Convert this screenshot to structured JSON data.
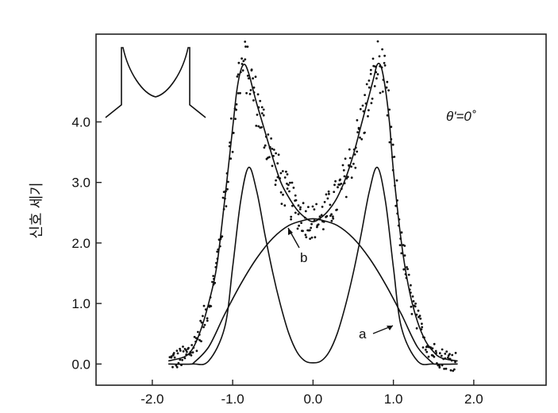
{
  "chart_data": {
    "type": "line",
    "title": "",
    "xlabel": "",
    "ylabel": "신호 세기",
    "xlim": [
      -2.7,
      2.9
    ],
    "ylim": [
      -0.35,
      5.45
    ],
    "x_ticks": [
      "-2.0",
      "-1.0",
      "0.0",
      "1.0",
      "2.0"
    ],
    "x_tick_values": [
      -2.0,
      -1.0,
      0.0,
      1.0,
      2.0
    ],
    "y_ticks": [
      "0.0",
      "1.0",
      "2.0",
      "3.0",
      "4.0"
    ],
    "y_tick_values": [
      0.0,
      1.0,
      2.0,
      3.0,
      4.0
    ],
    "grid": false,
    "annotation_theta": "θ'=0˚",
    "series": [
      {
        "label": "a",
        "style": "solid",
        "x": [
          -1.8,
          -1.5,
          -1.3,
          -1.1,
          -1.0,
          -0.9,
          -0.8,
          -0.7,
          -0.6,
          -0.5,
          -0.4,
          -0.3,
          -0.2,
          -0.1,
          0.0,
          0.1,
          0.2,
          0.3,
          0.4,
          0.5,
          0.6,
          0.7,
          0.8,
          0.9,
          1.0,
          1.1,
          1.3,
          1.5,
          1.8
        ],
        "y": [
          0.0,
          0.0,
          0.05,
          0.6,
          1.6,
          2.7,
          3.25,
          2.85,
          2.15,
          1.5,
          0.95,
          0.5,
          0.2,
          0.05,
          0.02,
          0.05,
          0.2,
          0.5,
          0.95,
          1.5,
          2.15,
          2.85,
          3.25,
          2.7,
          1.6,
          0.6,
          0.05,
          0.0,
          0.0
        ]
      },
      {
        "label": "",
        "style": "solid",
        "x": [
          -1.5,
          -1.3,
          -1.1,
          -0.9,
          -0.7,
          -0.5,
          -0.3,
          -0.1,
          0.0,
          0.1,
          0.3,
          0.5,
          0.7,
          0.9,
          1.1,
          1.3,
          1.5
        ],
        "y": [
          0.0,
          0.28,
          0.82,
          1.32,
          1.75,
          2.08,
          2.29,
          2.38,
          2.4,
          2.38,
          2.29,
          2.08,
          1.75,
          1.32,
          0.82,
          0.28,
          0.0
        ]
      },
      {
        "label": "b",
        "style": "solid",
        "x": [
          -1.8,
          -1.6,
          -1.5,
          -1.4,
          -1.3,
          -1.2,
          -1.1,
          -1.0,
          -0.95,
          -0.9,
          -0.85,
          -0.8,
          -0.75,
          -0.7,
          -0.6,
          -0.5,
          -0.4,
          -0.3,
          -0.2,
          -0.1,
          0.0,
          0.1,
          0.2,
          0.3,
          0.4,
          0.5,
          0.6,
          0.7,
          0.75,
          0.8,
          0.85,
          0.9,
          0.95,
          1.0,
          1.1,
          1.2,
          1.3,
          1.4,
          1.5,
          1.6,
          1.8
        ],
        "y": [
          0.05,
          0.12,
          0.25,
          0.55,
          1.0,
          1.6,
          2.7,
          3.9,
          4.5,
          4.85,
          4.95,
          4.8,
          4.55,
          4.3,
          3.85,
          3.4,
          3.0,
          2.75,
          2.55,
          2.42,
          2.35,
          2.42,
          2.55,
          2.75,
          3.05,
          3.45,
          3.95,
          4.45,
          4.7,
          4.95,
          4.9,
          4.55,
          4.0,
          3.2,
          2.0,
          1.2,
          0.7,
          0.38,
          0.2,
          0.1,
          0.05
        ]
      }
    ],
    "scatter_note": "experimental data points scattered around curve b",
    "labels": {
      "a": "a",
      "b": "b"
    }
  }
}
